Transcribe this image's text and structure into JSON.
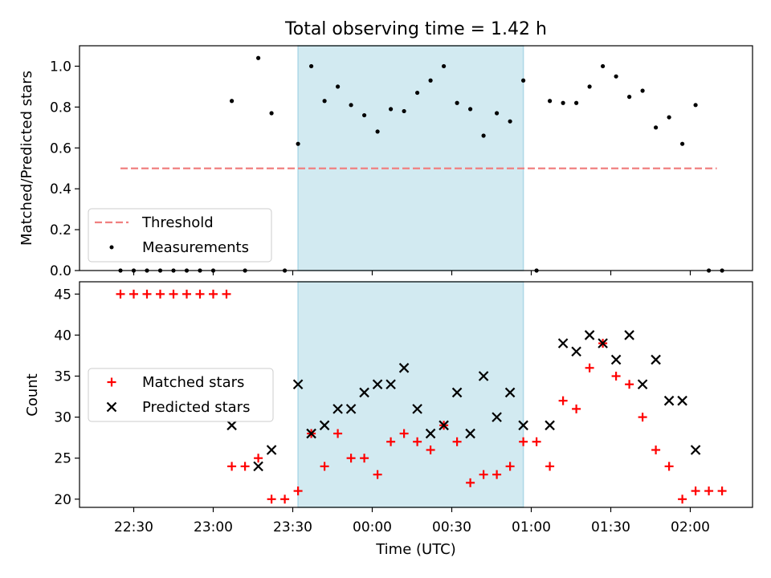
{
  "title": "Total observing time = 1.42 h",
  "colors": {
    "shade": "#add8e6",
    "threshold": "#f08080",
    "measurement": "#000000",
    "matched": "#ff0000",
    "predicted": "#000000"
  },
  "chart_data": [
    {
      "type": "scatter",
      "ylabel": "Matched/Predicted stars",
      "ylim": [
        0,
        1.1
      ],
      "yticks": [
        "0.0",
        "0.2",
        "0.4",
        "0.6",
        "0.8",
        "1.0"
      ],
      "legend": {
        "placement": "lower-left",
        "entries": [
          "Threshold",
          "Measurements"
        ]
      },
      "threshold": {
        "name": "Threshold",
        "value": 0.5,
        "x_start": "22:25",
        "x_end": "02:10"
      },
      "shaded_interval": [
        "23:32",
        "00:57"
      ],
      "series": [
        {
          "name": "Measurements",
          "points": [
            [
              "22:25",
              0
            ],
            [
              "22:30",
              0
            ],
            [
              "22:35",
              0
            ],
            [
              "22:40",
              0
            ],
            [
              "22:45",
              0
            ],
            [
              "22:50",
              0
            ],
            [
              "22:55",
              0
            ],
            [
              "23:00",
              0
            ],
            [
              "23:07",
              0.83
            ],
            [
              "23:12",
              0
            ],
            [
              "23:17",
              1.04
            ],
            [
              "23:22",
              0.77
            ],
            [
              "23:27",
              0
            ],
            [
              "23:32",
              0.62
            ],
            [
              "23:37",
              1.0
            ],
            [
              "23:42",
              0.83
            ],
            [
              "23:47",
              0.9
            ],
            [
              "23:52",
              0.81
            ],
            [
              "23:57",
              0.76
            ],
            [
              "00:02",
              0.68
            ],
            [
              "00:07",
              0.79
            ],
            [
              "00:12",
              0.78
            ],
            [
              "00:17",
              0.87
            ],
            [
              "00:22",
              0.93
            ],
            [
              "00:27",
              1.0
            ],
            [
              "00:32",
              0.82
            ],
            [
              "00:37",
              0.79
            ],
            [
              "00:42",
              0.66
            ],
            [
              "00:47",
              0.77
            ],
            [
              "00:52",
              0.73
            ],
            [
              "00:57",
              0.93
            ],
            [
              "01:02",
              0
            ],
            [
              "01:07",
              0.83
            ],
            [
              "01:12",
              0.82
            ],
            [
              "01:17",
              0.82
            ],
            [
              "01:22",
              0.9
            ],
            [
              "01:27",
              1.0
            ],
            [
              "01:32",
              0.95
            ],
            [
              "01:37",
              0.85
            ],
            [
              "01:42",
              0.88
            ],
            [
              "01:47",
              0.7
            ],
            [
              "01:52",
              0.75
            ],
            [
              "01:57",
              0.62
            ],
            [
              "02:02",
              0.81
            ],
            [
              "02:07",
              0
            ],
            [
              "02:12",
              0
            ]
          ]
        }
      ]
    },
    {
      "type": "scatter",
      "xlabel": "Time (UTC)",
      "ylabel": "Count",
      "ylim": [
        19,
        46.5
      ],
      "yticks": [
        "20",
        "25",
        "30",
        "35",
        "40",
        "45"
      ],
      "xticks": [
        "22:30",
        "23:00",
        "23:30",
        "00:00",
        "00:30",
        "01:00",
        "01:30",
        "02:00"
      ],
      "legend": {
        "placement": "center-left",
        "entries": [
          "Matched stars",
          "Predicted stars"
        ]
      },
      "shaded_interval": [
        "23:32",
        "00:57"
      ],
      "series": [
        {
          "name": "Matched stars",
          "marker": "+",
          "points": [
            [
              "22:25",
              45
            ],
            [
              "22:30",
              45
            ],
            [
              "22:35",
              45
            ],
            [
              "22:40",
              45
            ],
            [
              "22:45",
              45
            ],
            [
              "22:50",
              45
            ],
            [
              "22:55",
              45
            ],
            [
              "23:00",
              45
            ],
            [
              "23:05",
              45
            ],
            [
              "23:07",
              24
            ],
            [
              "23:12",
              24
            ],
            [
              "23:17",
              25
            ],
            [
              "23:22",
              20
            ],
            [
              "23:27",
              20
            ],
            [
              "23:32",
              21
            ],
            [
              "23:37",
              28
            ],
            [
              "23:42",
              24
            ],
            [
              "23:47",
              28
            ],
            [
              "23:52",
              25
            ],
            [
              "23:57",
              25
            ],
            [
              "00:02",
              23
            ],
            [
              "00:07",
              27
            ],
            [
              "00:12",
              28
            ],
            [
              "00:17",
              27
            ],
            [
              "00:22",
              26
            ],
            [
              "00:27",
              29
            ],
            [
              "00:32",
              27
            ],
            [
              "00:37",
              22
            ],
            [
              "00:42",
              23
            ],
            [
              "00:47",
              23
            ],
            [
              "00:52",
              24
            ],
            [
              "00:57",
              27
            ],
            [
              "01:02",
              27
            ],
            [
              "01:07",
              24
            ],
            [
              "01:12",
              32
            ],
            [
              "01:17",
              31
            ],
            [
              "01:22",
              36
            ],
            [
              "01:27",
              39
            ],
            [
              "01:32",
              35
            ],
            [
              "01:37",
              34
            ],
            [
              "01:42",
              30
            ],
            [
              "01:47",
              26
            ],
            [
              "01:52",
              24
            ],
            [
              "01:57",
              20
            ],
            [
              "02:02",
              21
            ],
            [
              "02:07",
              21
            ],
            [
              "02:12",
              21
            ]
          ]
        },
        {
          "name": "Predicted stars",
          "marker": "x",
          "points": [
            [
              "23:07",
              29
            ],
            [
              "23:17",
              24
            ],
            [
              "23:22",
              26
            ],
            [
              "23:32",
              34
            ],
            [
              "23:37",
              28
            ],
            [
              "23:42",
              29
            ],
            [
              "23:47",
              31
            ],
            [
              "23:52",
              31
            ],
            [
              "23:57",
              33
            ],
            [
              "00:02",
              34
            ],
            [
              "00:07",
              34
            ],
            [
              "00:12",
              36
            ],
            [
              "00:17",
              31
            ],
            [
              "00:22",
              28
            ],
            [
              "00:27",
              29
            ],
            [
              "00:32",
              33
            ],
            [
              "00:37",
              28
            ],
            [
              "00:42",
              35
            ],
            [
              "00:47",
              30
            ],
            [
              "00:52",
              33
            ],
            [
              "00:57",
              29
            ],
            [
              "01:07",
              29
            ],
            [
              "01:12",
              39
            ],
            [
              "01:17",
              38
            ],
            [
              "01:22",
              40
            ],
            [
              "01:27",
              39
            ],
            [
              "01:32",
              37
            ],
            [
              "01:37",
              40
            ],
            [
              "01:42",
              34
            ],
            [
              "01:47",
              37
            ],
            [
              "01:52",
              32
            ],
            [
              "01:57",
              32
            ],
            [
              "02:02",
              26
            ]
          ]
        }
      ]
    }
  ]
}
